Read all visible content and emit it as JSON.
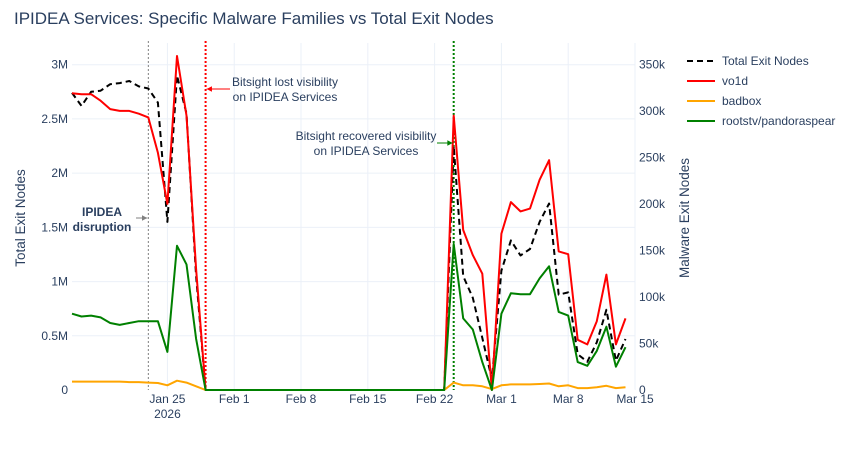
{
  "chart_data": {
    "type": "line",
    "title": "IPIDEA Services: Specific Malware Families vs Total Exit Nodes",
    "ylabel_left": "Total Exit Nodes",
    "ylabel_right": "Malware Exit Nodes",
    "ylim_left": [
      0,
      3200000
    ],
    "ylim_right": [
      0,
      373000
    ],
    "y_ticks_left": [
      {
        "value": 0,
        "label": "0"
      },
      {
        "value": 500000,
        "label": "0.5M"
      },
      {
        "value": 1000000,
        "label": "1M"
      },
      {
        "value": 1500000,
        "label": "1.5M"
      },
      {
        "value": 2000000,
        "label": "2M"
      },
      {
        "value": 2500000,
        "label": "2.5M"
      },
      {
        "value": 3000000,
        "label": "3M"
      }
    ],
    "y_ticks_right": [
      {
        "value": 0,
        "label": "0"
      },
      {
        "value": 50000,
        "label": "50k"
      },
      {
        "value": 100000,
        "label": "100k"
      },
      {
        "value": 150000,
        "label": "150k"
      },
      {
        "value": 200000,
        "label": "200k"
      },
      {
        "value": 250000,
        "label": "250k"
      },
      {
        "value": 300000,
        "label": "300k"
      },
      {
        "value": 350000,
        "label": "350k"
      }
    ],
    "xlim": [
      "2026-01-15",
      "2026-03-15"
    ],
    "x_ticks": [
      {
        "date": "2026-01-25",
        "label": "Jan 25",
        "sublabel": "2026"
      },
      {
        "date": "2026-02-01",
        "label": "Feb 1",
        "sublabel": ""
      },
      {
        "date": "2026-02-08",
        "label": "Feb 8",
        "sublabel": ""
      },
      {
        "date": "2026-02-15",
        "label": "Feb 15",
        "sublabel": ""
      },
      {
        "date": "2026-02-22",
        "label": "Feb 22",
        "sublabel": ""
      },
      {
        "date": "2026-03-01",
        "label": "Mar 1",
        "sublabel": ""
      },
      {
        "date": "2026-03-08",
        "label": "Mar 8",
        "sublabel": ""
      },
      {
        "date": "2026-03-15",
        "label": "Mar 15",
        "sublabel": ""
      }
    ],
    "grid": true,
    "legend_position": "top-right outside",
    "series": [
      {
        "name": "Total Exit Nodes",
        "axis": "left",
        "color": "#000000",
        "dash": "dashed",
        "points": [
          [
            "2026-01-15",
            2740000
          ],
          [
            "2026-01-16",
            2620000
          ],
          [
            "2026-01-17",
            2750000
          ],
          [
            "2026-01-18",
            2760000
          ],
          [
            "2026-01-19",
            2820000
          ],
          [
            "2026-01-20",
            2830000
          ],
          [
            "2026-01-21",
            2850000
          ],
          [
            "2026-01-22",
            2800000
          ],
          [
            "2026-01-23",
            2780000
          ],
          [
            "2026-01-24",
            2650000
          ],
          [
            "2026-01-25",
            1550000
          ],
          [
            "2026-01-26",
            2900000
          ],
          [
            "2026-01-27",
            2550000
          ],
          [
            "2026-01-28",
            1050000
          ],
          [
            "2026-01-29",
            0
          ],
          [
            "2026-02-23",
            0
          ],
          [
            "2026-02-24",
            2250000
          ],
          [
            "2026-02-25",
            1050000
          ],
          [
            "2026-02-26",
            850000
          ],
          [
            "2026-02-27",
            480000
          ],
          [
            "2026-02-28",
            100000
          ],
          [
            "2026-03-01",
            1100000
          ],
          [
            "2026-03-02",
            1380000
          ],
          [
            "2026-03-03",
            1240000
          ],
          [
            "2026-03-04",
            1300000
          ],
          [
            "2026-03-05",
            1550000
          ],
          [
            "2026-03-06",
            1720000
          ],
          [
            "2026-03-07",
            880000
          ],
          [
            "2026-03-08",
            900000
          ],
          [
            "2026-03-09",
            330000
          ],
          [
            "2026-03-10",
            260000
          ],
          [
            "2026-03-11",
            440000
          ],
          [
            "2026-03-12",
            740000
          ],
          [
            "2026-03-13",
            270000
          ],
          [
            "2026-03-14",
            470000
          ]
        ]
      },
      {
        "name": "vo1d",
        "axis": "right",
        "color": "#ff0000",
        "dash": "solid",
        "points": [
          [
            "2026-01-15",
            319000
          ],
          [
            "2026-01-16",
            318000
          ],
          [
            "2026-01-17",
            318000
          ],
          [
            "2026-01-18",
            311000
          ],
          [
            "2026-01-19",
            302000
          ],
          [
            "2026-01-20",
            300000
          ],
          [
            "2026-01-21",
            300000
          ],
          [
            "2026-01-22",
            297000
          ],
          [
            "2026-01-23",
            293000
          ],
          [
            "2026-01-24",
            255000
          ],
          [
            "2026-01-25",
            200000
          ],
          [
            "2026-01-26",
            359000
          ],
          [
            "2026-01-27",
            295000
          ],
          [
            "2026-01-28",
            130000
          ],
          [
            "2026-01-29",
            0
          ],
          [
            "2026-02-23",
            0
          ],
          [
            "2026-02-24",
            295000
          ],
          [
            "2026-02-25",
            172000
          ],
          [
            "2026-02-26",
            145000
          ],
          [
            "2026-02-27",
            125000
          ],
          [
            "2026-02-28",
            0
          ],
          [
            "2026-03-01",
            168000
          ],
          [
            "2026-03-02",
            202000
          ],
          [
            "2026-03-03",
            192000
          ],
          [
            "2026-03-04",
            195000
          ],
          [
            "2026-03-05",
            226000
          ],
          [
            "2026-03-06",
            247000
          ],
          [
            "2026-03-07",
            149000
          ],
          [
            "2026-03-08",
            146000
          ],
          [
            "2026-03-09",
            54000
          ],
          [
            "2026-03-10",
            49000
          ],
          [
            "2026-03-11",
            74000
          ],
          [
            "2026-03-12",
            124000
          ],
          [
            "2026-03-13",
            49000
          ],
          [
            "2026-03-14",
            77000
          ]
        ]
      },
      {
        "name": "badbox",
        "axis": "right",
        "color": "#ffa500",
        "dash": "solid",
        "points": [
          [
            "2026-01-15",
            9000
          ],
          [
            "2026-01-16",
            9000
          ],
          [
            "2026-01-17",
            9000
          ],
          [
            "2026-01-18",
            9000
          ],
          [
            "2026-01-19",
            9000
          ],
          [
            "2026-01-20",
            9000
          ],
          [
            "2026-01-21",
            8500
          ],
          [
            "2026-01-22",
            8500
          ],
          [
            "2026-01-23",
            8000
          ],
          [
            "2026-01-24",
            7500
          ],
          [
            "2026-01-25",
            5000
          ],
          [
            "2026-01-26",
            10000
          ],
          [
            "2026-01-27",
            8000
          ],
          [
            "2026-01-28",
            4000
          ],
          [
            "2026-01-29",
            0
          ],
          [
            "2026-02-23",
            0
          ],
          [
            "2026-02-24",
            8000
          ],
          [
            "2026-02-25",
            5000
          ],
          [
            "2026-02-26",
            5000
          ],
          [
            "2026-02-27",
            4000
          ],
          [
            "2026-02-28",
            1000
          ],
          [
            "2026-03-01",
            5000
          ],
          [
            "2026-03-02",
            6000
          ],
          [
            "2026-03-03",
            6000
          ],
          [
            "2026-03-04",
            6000
          ],
          [
            "2026-03-05",
            6500
          ],
          [
            "2026-03-06",
            7000
          ],
          [
            "2026-03-07",
            4000
          ],
          [
            "2026-03-08",
            5000
          ],
          [
            "2026-03-09",
            2000
          ],
          [
            "2026-03-10",
            2000
          ],
          [
            "2026-03-11",
            3000
          ],
          [
            "2026-03-12",
            4500
          ],
          [
            "2026-03-13",
            2000
          ],
          [
            "2026-03-14",
            3000
          ]
        ]
      },
      {
        "name": "rootstv/pandoraspear",
        "axis": "right",
        "color": "#008000",
        "dash": "solid",
        "points": [
          [
            "2026-01-15",
            82000
          ],
          [
            "2026-01-16",
            79000
          ],
          [
            "2026-01-17",
            80000
          ],
          [
            "2026-01-18",
            78000
          ],
          [
            "2026-01-19",
            72000
          ],
          [
            "2026-01-20",
            70000
          ],
          [
            "2026-01-21",
            72000
          ],
          [
            "2026-01-22",
            74000
          ],
          [
            "2026-01-23",
            74000
          ],
          [
            "2026-01-24",
            74000
          ],
          [
            "2026-01-25",
            41000
          ],
          [
            "2026-01-26",
            155000
          ],
          [
            "2026-01-27",
            135000
          ],
          [
            "2026-01-28",
            55000
          ],
          [
            "2026-01-29",
            0
          ],
          [
            "2026-02-23",
            0
          ],
          [
            "2026-02-24",
            157000
          ],
          [
            "2026-02-25",
            77000
          ],
          [
            "2026-02-26",
            65000
          ],
          [
            "2026-02-27",
            30000
          ],
          [
            "2026-02-28",
            0
          ],
          [
            "2026-03-01",
            82000
          ],
          [
            "2026-03-02",
            104000
          ],
          [
            "2026-03-03",
            103000
          ],
          [
            "2026-03-04",
            103000
          ],
          [
            "2026-03-05",
            120000
          ],
          [
            "2026-03-06",
            133000
          ],
          [
            "2026-03-07",
            84000
          ],
          [
            "2026-03-08",
            80000
          ],
          [
            "2026-03-09",
            30000
          ],
          [
            "2026-03-10",
            26000
          ],
          [
            "2026-03-11",
            42000
          ],
          [
            "2026-03-12",
            68000
          ],
          [
            "2026-03-13",
            25000
          ],
          [
            "2026-03-14",
            46000
          ]
        ]
      }
    ],
    "vlines": [
      {
        "date": "2026-01-23",
        "color": "#808080",
        "style": "dotted",
        "id": "ipidea-disruption"
      },
      {
        "date": "2026-01-29",
        "color": "#ff0000",
        "style": "dotted",
        "id": "lost-visibility"
      },
      {
        "date": "2026-02-24",
        "color": "#008000",
        "style": "dotted",
        "id": "recovered-visibility"
      }
    ],
    "annotations": [
      {
        "id": "disruption",
        "lines": [
          "IPIDEA",
          "disruption"
        ],
        "bold": true,
        "color": "#808080"
      },
      {
        "id": "lost",
        "lines": [
          "Bitsight lost visibility",
          "on IPIDEA Services"
        ],
        "bold": false,
        "color": "#ff0000"
      },
      {
        "id": "recovered",
        "lines": [
          "Bitsight recovered visibility",
          "on IPIDEA Services"
        ],
        "bold": false,
        "color": "#008000"
      }
    ]
  }
}
